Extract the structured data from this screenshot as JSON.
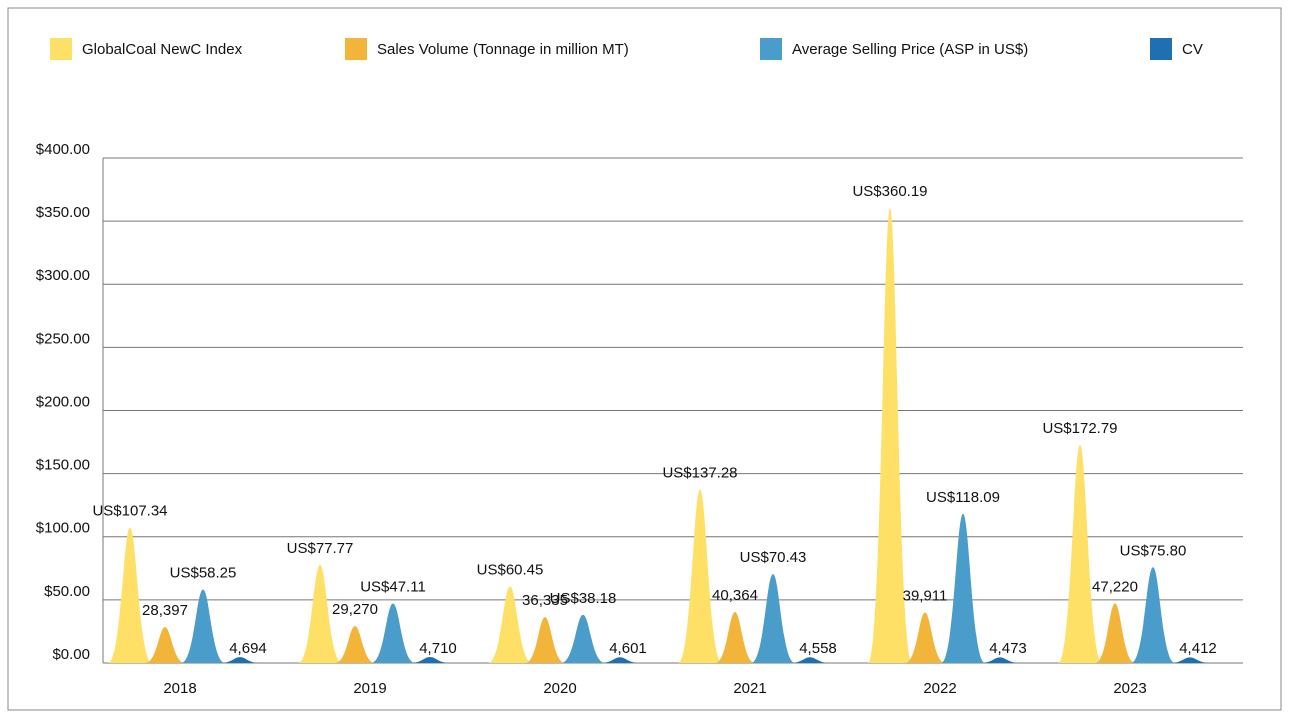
{
  "chart_data": {
    "type": "spike",
    "categories": [
      "2018",
      "2019",
      "2020",
      "2021",
      "2022",
      "2023"
    ],
    "series": [
      {
        "name": "GlobalCoal NewC Index",
        "color": "#FFE066",
        "values": [
          107.34,
          77.77,
          60.45,
          137.28,
          360.19,
          172.79
        ],
        "value_labels": [
          "US$107.34",
          "US$77.77",
          "US$60.45",
          "US$137.28",
          "US$360.19",
          "US$172.79"
        ]
      },
      {
        "name": "Sales Volume (Tonnage in million MT)",
        "color": "#F2B53A",
        "values": [
          28.397,
          29.27,
          36.335,
          40.364,
          39.911,
          47.22
        ],
        "value_labels": [
          "28,397",
          "29,270",
          "36,335",
          "40,364",
          "39,911",
          "47,220"
        ]
      },
      {
        "name": "Average Selling Price (ASP in US$)",
        "color": "#4A9CCB",
        "values": [
          58.25,
          47.11,
          38.18,
          70.43,
          118.09,
          75.8
        ],
        "value_labels": [
          "US$58.25",
          "US$47.11",
          "US$38.18",
          "US$70.43",
          "US$118.09",
          "US$75.80"
        ]
      },
      {
        "name": "CV",
        "color": "#1F6FB3",
        "values": [
          4.694,
          4.71,
          4.601,
          4.558,
          4.473,
          4.412
        ],
        "value_labels": [
          "4,694",
          "4,710",
          "4,601",
          "4,558",
          "4,473",
          "4,412"
        ]
      }
    ],
    "ylim": [
      0,
      400
    ],
    "yticks": [
      {
        "value": 0,
        "label": "$0.00"
      },
      {
        "value": 50,
        "label": "$50.00"
      },
      {
        "value": 100,
        "label": "$100.00"
      },
      {
        "value": 150,
        "label": "$150.00"
      },
      {
        "value": 200,
        "label": "$200.00"
      },
      {
        "value": 250,
        "label": "$250.00"
      },
      {
        "value": 300,
        "label": "$300.00"
      },
      {
        "value": 350,
        "label": "$350.00"
      },
      {
        "value": 400,
        "label": "$400.00"
      }
    ],
    "grid": true
  }
}
